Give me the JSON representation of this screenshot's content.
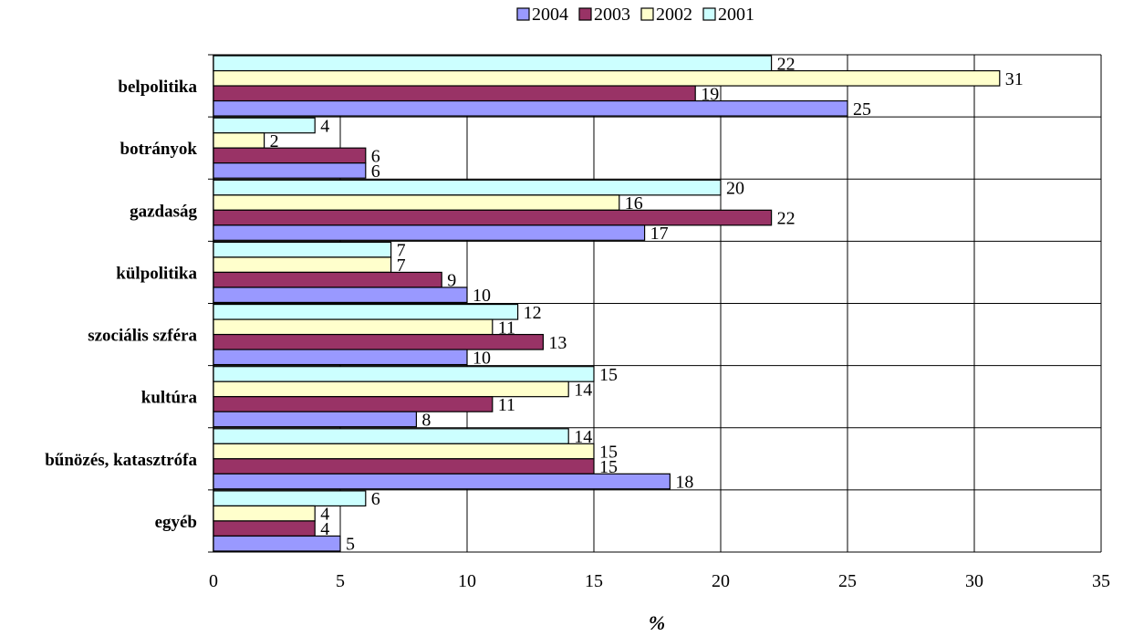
{
  "chart_data": {
    "type": "bar",
    "orientation": "horizontal",
    "categories": [
      "belpolitika",
      "botrányok",
      "gazdaság",
      "külpolitika",
      "szociális szféra",
      "kultúra",
      "bűnözés, katasztrófa",
      "egyéb"
    ],
    "series": [
      {
        "name": "2001",
        "color": "#ccffff",
        "values": [
          22,
          4,
          20,
          7,
          12,
          15,
          14,
          6
        ]
      },
      {
        "name": "2002",
        "color": "#ffffcc",
        "values": [
          31,
          2,
          16,
          7,
          11,
          14,
          15,
          4
        ]
      },
      {
        "name": "2003",
        "color": "#993366",
        "values": [
          19,
          6,
          22,
          9,
          13,
          11,
          15,
          4
        ]
      },
      {
        "name": "2004",
        "color": "#9999ff",
        "values": [
          25,
          6,
          17,
          10,
          10,
          8,
          18,
          5
        ]
      }
    ],
    "legend_order": [
      "2004",
      "2003",
      "2002",
      "2001"
    ],
    "legend_position": "top",
    "xlabel": "%",
    "ylabel": "",
    "title": "",
    "xlim": [
      0,
      35
    ],
    "xticks": [
      0,
      5,
      10,
      15,
      20,
      25,
      30,
      35
    ],
    "grid": "vertical",
    "data_labels": true
  }
}
